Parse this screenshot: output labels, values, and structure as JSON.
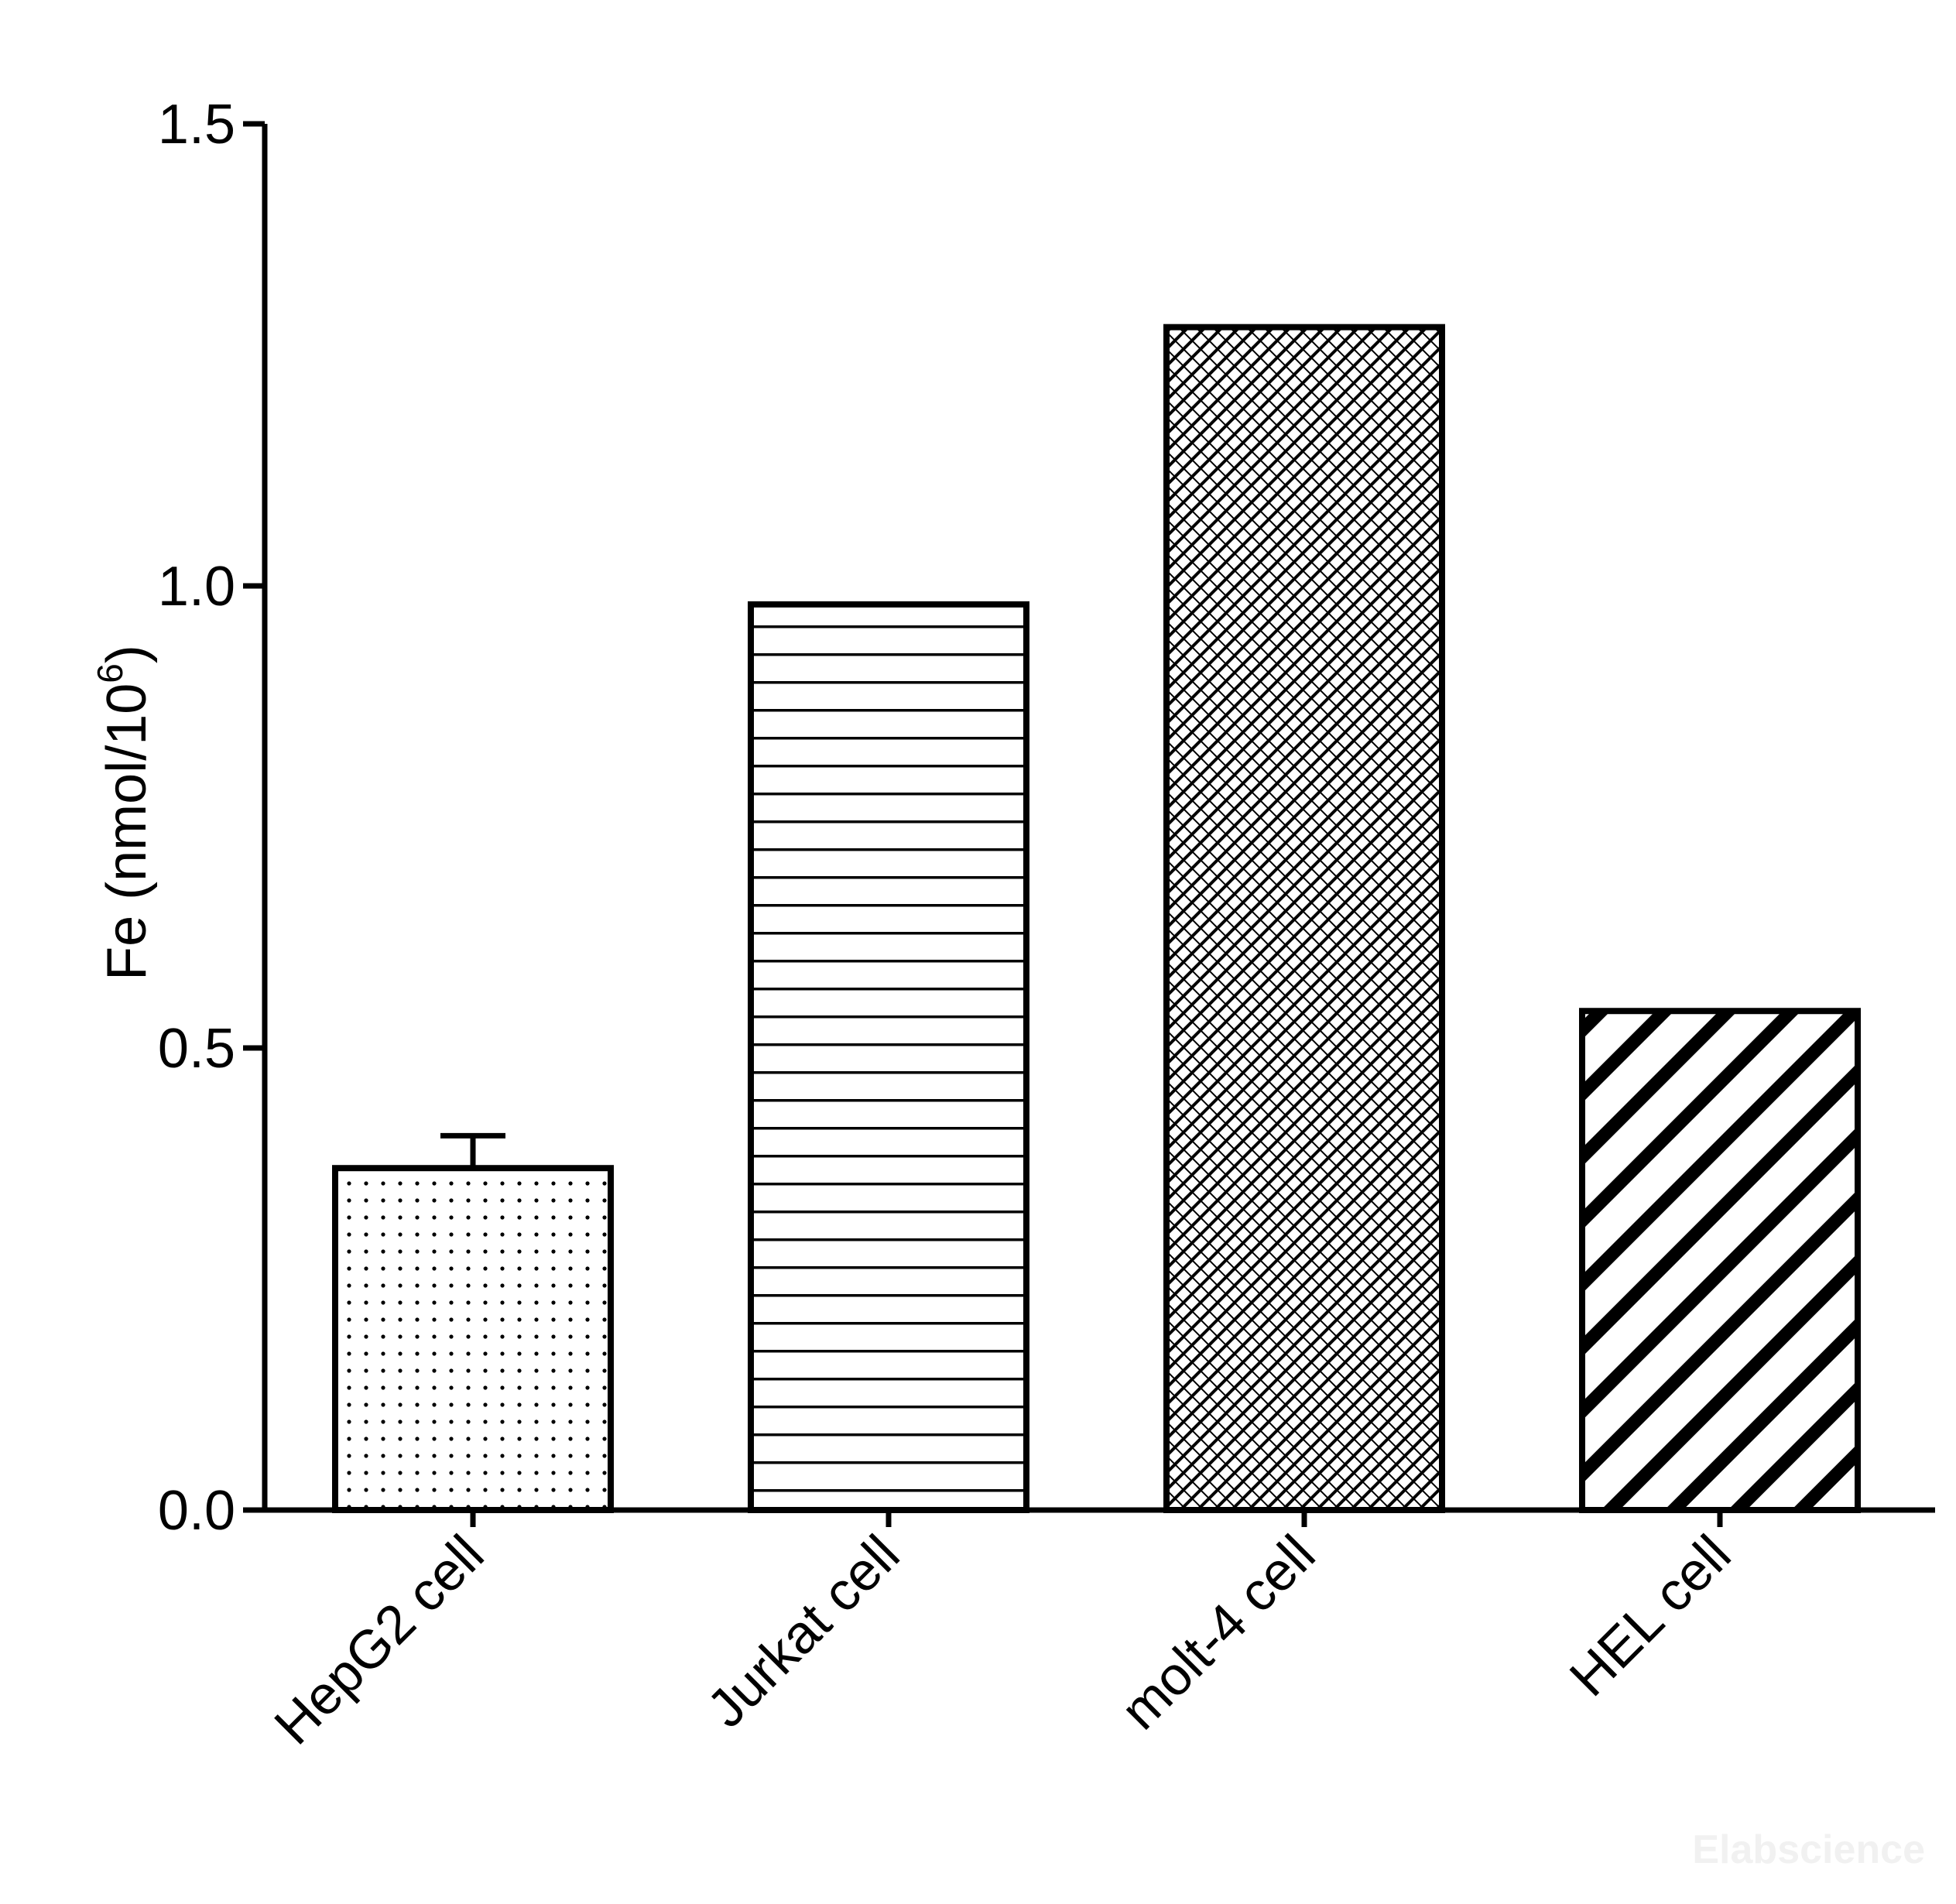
{
  "chart_data": {
    "type": "bar",
    "categories": [
      "HepG2 cell",
      "Jurkat cell",
      "molt-4 cell",
      "HEL cell"
    ],
    "values": [
      0.37,
      0.98,
      1.28,
      0.54
    ],
    "errors": [
      0.035,
      0.002,
      0.002,
      0.002
    ],
    "fill_patterns": [
      "dots",
      "horizontal-lines",
      "crosshatch",
      "diagonal-stripes"
    ],
    "ylabel_prefix": "Fe (nmol/10",
    "ylabel_sup": "6",
    "ylabel_suffix": ")",
    "ylim": [
      0,
      1.5
    ],
    "yticks": [
      {
        "value": 0.0,
        "label": "0.0"
      },
      {
        "value": 0.5,
        "label": "0.5"
      },
      {
        "value": 1.0,
        "label": "1.0"
      },
      {
        "value": 1.5,
        "label": "1.5"
      }
    ],
    "grid": false,
    "legend": "none"
  },
  "watermark": "Elabscience"
}
